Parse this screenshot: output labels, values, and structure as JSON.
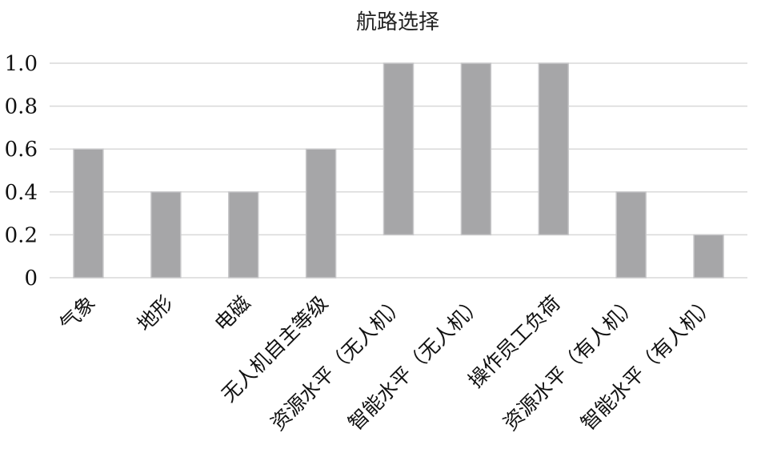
{
  "chart_data": {
    "type": "bar",
    "title": "航路选择",
    "categories": [
      "气象",
      "地形",
      "电磁",
      "无人机自主等级",
      "资源水平（无人机）",
      "智能水平（无人机）",
      "操作员工负荷",
      "资源水平（有人机）",
      "智能水平（有人机）"
    ],
    "values": [
      [
        0,
        0.6
      ],
      [
        0,
        0.4
      ],
      [
        0,
        0.4
      ],
      [
        0,
        0.6
      ],
      [
        0.2,
        1.0
      ],
      [
        0.2,
        1.0
      ],
      [
        0.2,
        1.0
      ],
      [
        0,
        0.4
      ],
      [
        0,
        0.2
      ]
    ],
    "value_format": "floating range [low, high]",
    "yticks": [
      "0",
      "0.2",
      "0.4",
      "0.6",
      "0.8",
      "1.0"
    ],
    "ylim": [
      0,
      1.0
    ],
    "xlabel": "",
    "ylabel": "",
    "grid": true,
    "legend": "none",
    "bar_color": "#a6a6a8"
  }
}
